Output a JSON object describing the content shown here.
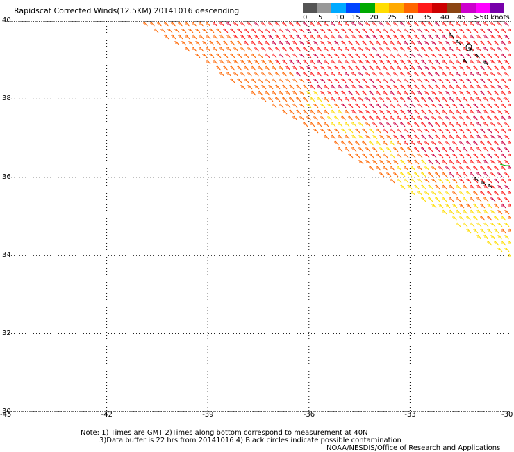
{
  "title": "Rapidscat Corrected Winds(12.5KM) 20141016 descending",
  "legend": {
    "colors": [
      "#555555",
      "#999999",
      "#00aaff",
      "#0044ff",
      "#00aa00",
      "#ffdd00",
      "#ffaa00",
      "#ff6600",
      "#ff1a1a",
      "#cc0000",
      "#8b4513",
      "#cc00cc",
      "#ff00ff",
      "#7700aa"
    ],
    "labels": [
      "0",
      "5",
      "10",
      "15",
      "20",
      "25",
      "30",
      "35",
      "40",
      "45",
      ">50 knots"
    ]
  },
  "map": {
    "lat_labels": [
      "40",
      "38",
      "36",
      "34",
      "32",
      "30"
    ],
    "lon_labels": [
      "-45",
      "-42",
      "-39",
      "-36",
      "-33",
      "-30"
    ],
    "lat_range": [
      30,
      40
    ],
    "lon_range": [
      -45,
      -30
    ],
    "gridlines": "dotted",
    "wind_field": {
      "description_colors": [
        "#ff1a1a",
        "#ff6600",
        "#ffdd00",
        "#cc0044",
        "#000000",
        "#00aa00"
      ]
    }
  },
  "footer": {
    "line1": "Note: 1) Times are GMT 2)Times along bottom correspond to measurement at 40N",
    "line2": "3)Data buffer is 22 hrs from 20141016 4) Black circles indicate possible contamination",
    "line3": "NOAA/NESDIS/Office of Research and Applications"
  }
}
